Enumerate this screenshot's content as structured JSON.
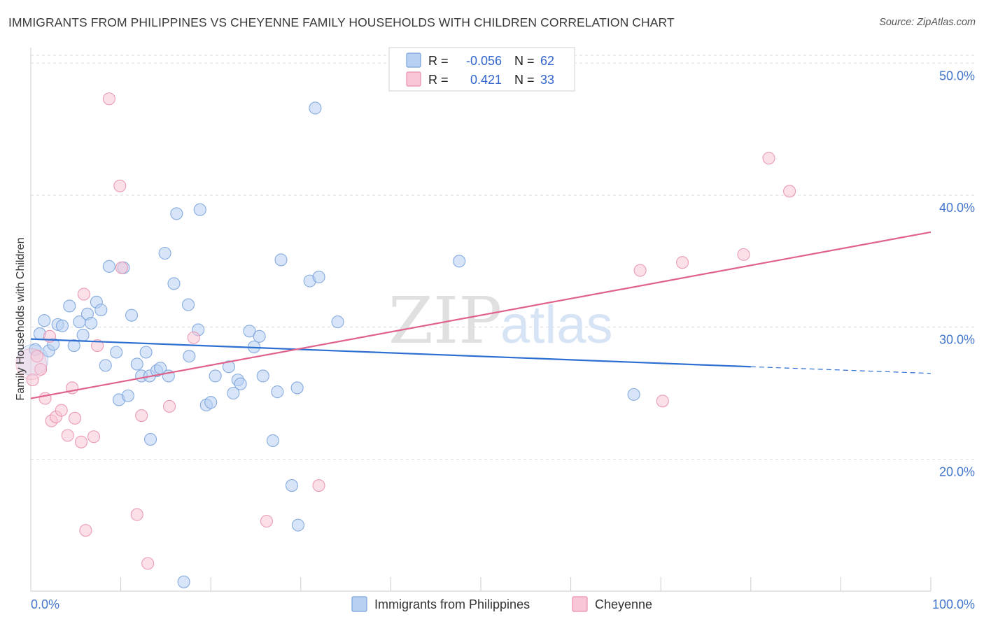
{
  "title": "IMMIGRANTS FROM PHILIPPINES VS CHEYENNE FAMILY HOUSEHOLDS WITH CHILDREN CORRELATION CHART",
  "source": "Source: ZipAtlas.com",
  "watermark": {
    "zip": "ZIP",
    "atlas": "atlas"
  },
  "colors": {
    "blue_fill": "#b8d0f2",
    "blue_stroke": "#7aa3dc",
    "blue_line": "#2d6fd1",
    "pink_fill": "#f8c6d6",
    "pink_stroke": "#e891ae",
    "pink_line": "#e0628c",
    "grid": "#dddddd",
    "axis_label": "#4477cc"
  },
  "legend": {
    "rows": [
      {
        "r_label": "R =",
        "r_value": "-0.056",
        "n_label": "N =",
        "n_value": "62",
        "color": "blue"
      },
      {
        "r_label": "R =",
        "r_value": "0.421",
        "n_label": "N =",
        "n_value": "33",
        "color": "pink"
      }
    ]
  },
  "chart_data": {
    "type": "scatter",
    "title": "IMMIGRANTS FROM PHILIPPINES VS CHEYENNE FAMILY HOUSEHOLDS WITH CHILDREN CORRELATION CHART",
    "xlabel": "",
    "ylabel": "Family Households with Children",
    "xlim": [
      0,
      100
    ],
    "ylim": [
      10,
      51.5
    ],
    "x_tick_labels": [
      "0.0%",
      "100.0%"
    ],
    "y_ticks": [
      20,
      30,
      40,
      50
    ],
    "y_tick_labels": [
      "20.0%",
      "30.0%",
      "40.0%",
      "50.0%"
    ],
    "grid": true,
    "legend_position": "top-center",
    "series": [
      {
        "name": "Immigrants from Philippines",
        "color": "blue",
        "trend": {
          "x": [
            0,
            80
          ],
          "y": [
            29.1,
            27.0
          ],
          "dashed_to": [
            100,
            26.5
          ]
        },
        "points": [
          [
            0.5,
            28.3
          ],
          [
            1.0,
            29.5
          ],
          [
            1.5,
            30.5
          ],
          [
            2.0,
            28.2
          ],
          [
            2.5,
            28.7
          ],
          [
            3.0,
            30.2
          ],
          [
            3.5,
            30.1
          ],
          [
            4.3,
            31.6
          ],
          [
            4.8,
            28.6
          ],
          [
            5.4,
            30.4
          ],
          [
            5.8,
            29.4
          ],
          [
            6.3,
            31.0
          ],
          [
            6.7,
            30.3
          ],
          [
            7.3,
            31.9
          ],
          [
            7.8,
            31.3
          ],
          [
            8.3,
            27.1
          ],
          [
            8.7,
            34.6
          ],
          [
            9.5,
            28.1
          ],
          [
            9.8,
            24.5
          ],
          [
            10.3,
            34.5
          ],
          [
            10.8,
            24.8
          ],
          [
            11.2,
            30.9
          ],
          [
            11.8,
            27.2
          ],
          [
            12.3,
            26.3
          ],
          [
            12.8,
            28.1
          ],
          [
            13.2,
            26.3
          ],
          [
            13.3,
            21.5
          ],
          [
            14.0,
            26.7
          ],
          [
            14.4,
            26.9
          ],
          [
            14.9,
            35.6
          ],
          [
            15.3,
            26.3
          ],
          [
            15.9,
            33.3
          ],
          [
            16.2,
            38.6
          ],
          [
            17.0,
            10.7
          ],
          [
            17.5,
            31.7
          ],
          [
            17.6,
            27.8
          ],
          [
            18.6,
            29.8
          ],
          [
            18.8,
            38.9
          ],
          [
            19.5,
            24.1
          ],
          [
            20.0,
            24.3
          ],
          [
            20.5,
            26.3
          ],
          [
            22.0,
            27.0
          ],
          [
            22.5,
            25.0
          ],
          [
            23.0,
            26.0
          ],
          [
            23.3,
            25.7
          ],
          [
            24.3,
            29.7
          ],
          [
            24.8,
            28.5
          ],
          [
            25.4,
            29.3
          ],
          [
            25.8,
            26.3
          ],
          [
            26.9,
            21.4
          ],
          [
            27.4,
            25.1
          ],
          [
            27.8,
            35.1
          ],
          [
            29.0,
            18.0
          ],
          [
            29.6,
            25.4
          ],
          [
            29.7,
            15.0
          ],
          [
            31.0,
            33.5
          ],
          [
            31.6,
            46.6
          ],
          [
            32.0,
            33.8
          ],
          [
            34.1,
            30.4
          ],
          [
            47.6,
            35.0
          ],
          [
            67.0,
            24.9
          ],
          [
            0.2,
            27.5
          ]
        ]
      },
      {
        "name": "Cheyenne",
        "color": "pink",
        "trend": {
          "x": [
            0,
            100
          ],
          "y": [
            24.6,
            37.2
          ]
        },
        "points": [
          [
            0.2,
            26.0
          ],
          [
            0.7,
            27.8
          ],
          [
            1.1,
            26.8
          ],
          [
            1.6,
            24.6
          ],
          [
            2.1,
            29.3
          ],
          [
            2.3,
            22.9
          ],
          [
            2.8,
            23.2
          ],
          [
            3.4,
            23.7
          ],
          [
            4.1,
            21.8
          ],
          [
            4.6,
            25.4
          ],
          [
            4.9,
            23.1
          ],
          [
            5.6,
            21.3
          ],
          [
            5.9,
            32.5
          ],
          [
            6.1,
            14.6
          ],
          [
            7.0,
            21.7
          ],
          [
            7.4,
            28.6
          ],
          [
            8.7,
            47.3
          ],
          [
            9.9,
            40.7
          ],
          [
            10.1,
            34.5
          ],
          [
            11.8,
            15.8
          ],
          [
            12.3,
            23.3
          ],
          [
            13.0,
            12.1
          ],
          [
            15.4,
            24.0
          ],
          [
            18.1,
            29.2
          ],
          [
            26.2,
            15.3
          ],
          [
            32.0,
            18.0
          ],
          [
            67.7,
            34.3
          ],
          [
            70.2,
            24.4
          ],
          [
            72.4,
            34.9
          ],
          [
            79.2,
            35.5
          ],
          [
            82.0,
            42.8
          ],
          [
            84.3,
            40.3
          ],
          [
            0.05,
            27.2
          ]
        ]
      }
    ]
  },
  "bottom_legend": {
    "items": [
      {
        "label": "Immigrants from Philippines",
        "color": "blue"
      },
      {
        "label": "Cheyenne",
        "color": "pink"
      }
    ]
  }
}
